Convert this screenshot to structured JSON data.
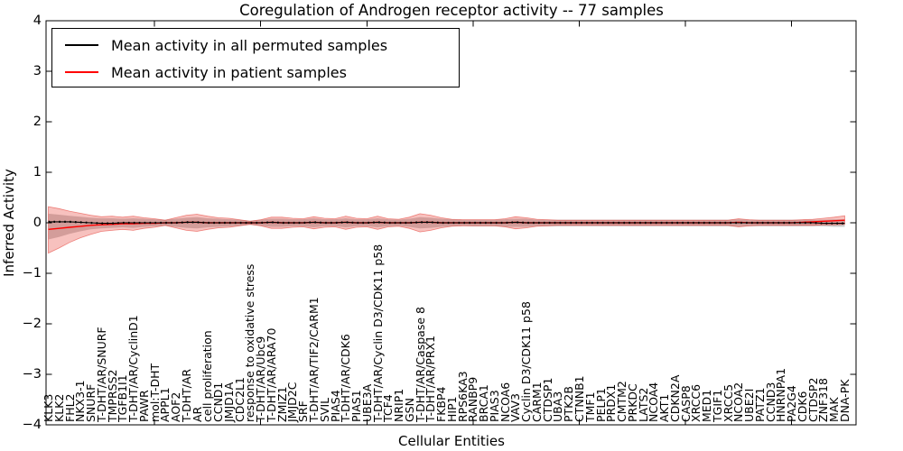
{
  "figure": {
    "title": "Coregulation of Androgen receptor activity -- 77 samples",
    "xlabel": "Cellular Entities",
    "ylabel": "Inferred Activity"
  },
  "legend": {
    "entries": [
      {
        "label": "Mean activity in all permuted samples",
        "color": "#000000"
      },
      {
        "label": "Mean activity in patient samples",
        "color": "#ff0000"
      }
    ]
  },
  "colors": {
    "frame": "#000000",
    "permuted_line": "#000000",
    "patient_line": "#ff0000",
    "patient_band_fill": "rgba(228,50,40,0.30)",
    "patient_band_edge": "rgba(228,50,40,0.55)",
    "permuted_band_fill": "rgba(120,120,120,0.38)"
  },
  "chart_data": {
    "type": "line",
    "title": "Coregulation of Androgen receptor activity -- 77 samples",
    "xlabel": "Cellular Entities",
    "ylabel": "Inferred Activity",
    "ylim": [
      -4,
      4
    ],
    "yticks": [
      4,
      3,
      2,
      1,
      0,
      -1,
      -2,
      -3,
      -4
    ],
    "ytick_labels": [
      "4",
      "3",
      "2",
      "1",
      "0",
      "−1",
      "−2",
      "−3",
      "−4"
    ],
    "xtick_indices": [
      10,
      20,
      30,
      40,
      50,
      60,
      70
    ],
    "grid": false,
    "legend_position": "upper left",
    "categories": [
      "KLK3",
      "KLK2",
      "FHL2",
      "NKX3-1",
      "SNURF",
      "T-DHT/AR/SNURF",
      "TMPRSS2",
      "TGFB1I1",
      "T-DHT/AR/CyclinD1",
      "PAWR",
      "mol:T-DHT",
      "APPL1",
      "AOF2",
      "T-DHT/AR",
      "AR",
      "cell proliferation",
      "CCND1",
      "JMJD1A",
      "CDC2L1",
      "response to oxidative stress",
      "T-DHT/AR/Ubc9",
      "T-DHT/AR/ARA70",
      "ZMIZ1",
      "JMJD2C",
      "SRF",
      "T-DHT/AR/TIF2/CARM1",
      "SVIL",
      "PIAS4",
      "T-DHT/AR/CDK6",
      "PIAS1",
      "UBE3A",
      "T-DHT/AR/Cyclin D3/CDK11 p58",
      "TCF4",
      "NRIP1",
      "GSN",
      "T-DHT/AR/Caspase 8",
      "T-DHT/AR/PRX1",
      "FKBP4",
      "HIP1",
      "RPS6KA3",
      "RANBP9",
      "BRCA1",
      "PIAS3",
      "NCOA6",
      "VAV3",
      "Cyclin D3/CDK11 p58",
      "CARM1",
      "CTDSP1",
      "UBA3",
      "PTK2B",
      "CTNNB1",
      "TMF1",
      "PELP1",
      "PRDX1",
      "CMTM2",
      "PRKDC",
      "LATS2",
      "NCOA4",
      "AKT1",
      "CDKN2A",
      "CASP8",
      "XRCC6",
      "MED1",
      "TGIF1",
      "XRCC5",
      "NCOA2",
      "UBE2I",
      "PATZ1",
      "CCND3",
      "HNRNPA1",
      "PA2G4",
      "CDK6",
      "CTDSP2",
      "ZNF318",
      "MAK",
      "DNA-PK"
    ],
    "series": [
      {
        "name": "Mean activity in all permuted samples",
        "color": "#000000",
        "values": [
          0.02,
          0.02,
          0.02,
          0.01,
          0.0,
          -0.01,
          -0.01,
          0.0,
          0.0,
          0.0,
          0.0,
          0.0,
          0.0,
          0.01,
          0.01,
          0.0,
          0.0,
          0.0,
          0.0,
          0.0,
          0.0,
          0.01,
          0.0,
          0.0,
          0.0,
          0.01,
          0.0,
          0.0,
          0.01,
          0.0,
          0.0,
          0.01,
          0.0,
          0.0,
          0.0,
          0.01,
          0.01,
          0.0,
          0.0,
          0.0,
          0.0,
          0.0,
          0.0,
          0.0,
          0.01,
          0.0,
          0.0,
          0.0,
          0.0,
          0.0,
          0.0,
          0.0,
          0.0,
          0.0,
          0.0,
          0.0,
          0.0,
          0.0,
          0.0,
          0.0,
          0.0,
          0.0,
          0.0,
          0.0,
          0.0,
          0.0,
          0.0,
          0.0,
          0.0,
          0.0,
          0.0,
          0.0,
          0.0,
          -0.01,
          -0.01,
          -0.01
        ]
      },
      {
        "name": "Mean activity in patient samples",
        "color": "#ff0000",
        "values": [
          -0.13,
          -0.11,
          -0.09,
          -0.07,
          -0.05,
          -0.04,
          -0.03,
          -0.02,
          -0.02,
          -0.01,
          -0.01,
          0.0,
          0.0,
          0.01,
          0.01,
          0.0,
          0.0,
          0.0,
          0.0,
          0.0,
          0.0,
          0.01,
          0.0,
          0.0,
          0.0,
          0.01,
          0.0,
          0.0,
          0.01,
          0.0,
          0.0,
          0.01,
          0.0,
          0.0,
          0.0,
          0.01,
          0.01,
          0.0,
          0.0,
          0.0,
          0.0,
          0.0,
          0.0,
          0.0,
          0.01,
          0.0,
          0.0,
          0.0,
          0.0,
          0.0,
          0.0,
          0.0,
          0.0,
          0.0,
          0.0,
          0.0,
          0.0,
          0.0,
          0.0,
          0.0,
          0.0,
          0.0,
          0.0,
          0.0,
          0.0,
          0.01,
          0.0,
          0.0,
          0.0,
          0.0,
          0.0,
          0.01,
          0.02,
          0.03,
          0.04,
          0.05
        ]
      }
    ],
    "bands": [
      {
        "name": "patient envelope",
        "fill": "rgba(228,50,40,0.30)",
        "upper": [
          0.32,
          0.28,
          0.23,
          0.19,
          0.15,
          0.12,
          0.13,
          0.11,
          0.13,
          0.1,
          0.08,
          0.05,
          0.1,
          0.15,
          0.17,
          0.13,
          0.1,
          0.09,
          0.06,
          0.03,
          0.06,
          0.11,
          0.11,
          0.09,
          0.08,
          0.12,
          0.09,
          0.08,
          0.13,
          0.09,
          0.08,
          0.13,
          0.08,
          0.07,
          0.11,
          0.18,
          0.15,
          0.1,
          0.07,
          0.06,
          0.06,
          0.06,
          0.06,
          0.08,
          0.12,
          0.1,
          0.07,
          0.06,
          0.05,
          0.05,
          0.05,
          0.05,
          0.05,
          0.05,
          0.05,
          0.05,
          0.05,
          0.05,
          0.05,
          0.05,
          0.05,
          0.05,
          0.05,
          0.05,
          0.05,
          0.08,
          0.06,
          0.05,
          0.05,
          0.05,
          0.05,
          0.06,
          0.07,
          0.09,
          0.11,
          0.14
        ],
        "lower": [
          -0.6,
          -0.5,
          -0.39,
          -0.3,
          -0.23,
          -0.17,
          -0.15,
          -0.13,
          -0.15,
          -0.11,
          -0.09,
          -0.05,
          -0.1,
          -0.15,
          -0.17,
          -0.13,
          -0.1,
          -0.09,
          -0.06,
          -0.03,
          -0.06,
          -0.11,
          -0.11,
          -0.09,
          -0.08,
          -0.12,
          -0.09,
          -0.08,
          -0.13,
          -0.09,
          -0.08,
          -0.13,
          -0.08,
          -0.07,
          -0.11,
          -0.18,
          -0.15,
          -0.1,
          -0.07,
          -0.06,
          -0.06,
          -0.06,
          -0.06,
          -0.08,
          -0.12,
          -0.1,
          -0.07,
          -0.06,
          -0.05,
          -0.05,
          -0.05,
          -0.05,
          -0.05,
          -0.05,
          -0.05,
          -0.05,
          -0.05,
          -0.05,
          -0.05,
          -0.05,
          -0.05,
          -0.05,
          -0.05,
          -0.05,
          -0.05,
          -0.08,
          -0.06,
          -0.05,
          -0.05,
          -0.05,
          -0.05,
          -0.05,
          -0.05,
          -0.04,
          -0.04,
          -0.03
        ]
      },
      {
        "name": "permuted envelope",
        "fill": "rgba(120,120,120,0.38)",
        "upper": [
          0.18,
          0.16,
          0.14,
          0.12,
          0.1,
          0.09,
          0.09,
          0.08,
          0.09,
          0.08,
          0.07,
          0.06,
          0.08,
          0.1,
          0.11,
          0.09,
          0.08,
          0.07,
          0.06,
          0.04,
          0.06,
          0.08,
          0.08,
          0.07,
          0.07,
          0.09,
          0.07,
          0.07,
          0.09,
          0.07,
          0.07,
          0.09,
          0.07,
          0.06,
          0.08,
          0.11,
          0.1,
          0.08,
          0.07,
          0.06,
          0.06,
          0.06,
          0.06,
          0.07,
          0.08,
          0.08,
          0.06,
          0.06,
          0.06,
          0.06,
          0.06,
          0.06,
          0.06,
          0.06,
          0.06,
          0.06,
          0.06,
          0.06,
          0.06,
          0.06,
          0.06,
          0.06,
          0.06,
          0.06,
          0.06,
          0.07,
          0.06,
          0.06,
          0.06,
          0.06,
          0.06,
          0.06,
          0.06,
          0.06,
          0.07,
          0.07
        ],
        "lower": [
          -0.33,
          -0.28,
          -0.22,
          -0.17,
          -0.13,
          -0.11,
          -0.1,
          -0.09,
          -0.1,
          -0.08,
          -0.07,
          -0.06,
          -0.08,
          -0.1,
          -0.11,
          -0.09,
          -0.08,
          -0.07,
          -0.06,
          -0.04,
          -0.06,
          -0.08,
          -0.08,
          -0.07,
          -0.07,
          -0.09,
          -0.07,
          -0.07,
          -0.09,
          -0.07,
          -0.07,
          -0.09,
          -0.07,
          -0.06,
          -0.08,
          -0.11,
          -0.1,
          -0.08,
          -0.07,
          -0.06,
          -0.07,
          -0.07,
          -0.07,
          -0.08,
          -0.08,
          -0.08,
          -0.07,
          -0.07,
          -0.07,
          -0.07,
          -0.07,
          -0.07,
          -0.07,
          -0.07,
          -0.07,
          -0.07,
          -0.07,
          -0.07,
          -0.07,
          -0.07,
          -0.07,
          -0.07,
          -0.07,
          -0.07,
          -0.07,
          -0.08,
          -0.07,
          -0.07,
          -0.07,
          -0.07,
          -0.07,
          -0.07,
          -0.07,
          -0.07,
          -0.08,
          -0.08
        ]
      }
    ]
  }
}
